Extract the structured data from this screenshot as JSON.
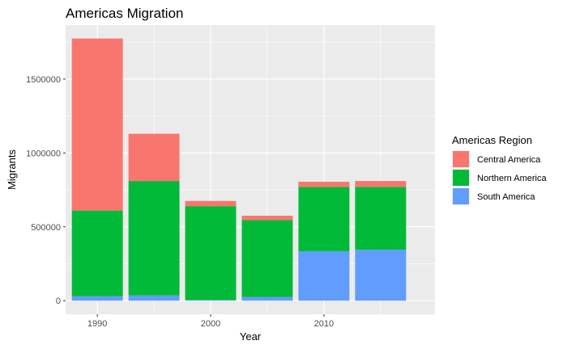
{
  "chart_data": {
    "type": "bar",
    "stacked": true,
    "title": "Americas Migration",
    "xlabel": "Year",
    "ylabel": "Migrants",
    "x": [
      1990,
      1995,
      2000,
      2005,
      2010,
      2015
    ],
    "xlim": [
      1987.2,
      2019.8
    ],
    "x_ticks": [
      1990,
      2000,
      2010
    ],
    "x_tick_labels": [
      "1990",
      "2000",
      "2010"
    ],
    "ylim": [
      -92000,
      1866000
    ],
    "y_ticks": [
      0,
      500000,
      1000000,
      1500000
    ],
    "y_tick_labels": [
      "0",
      "500000",
      "1000000",
      "1500000"
    ],
    "grid": true,
    "legend_title": "Americas Region",
    "legend_position": "right",
    "series": [
      {
        "name": "South America",
        "color": "#619CFF",
        "values": [
          30000,
          35000,
          5000,
          25000,
          335000,
          345000
        ]
      },
      {
        "name": "Northern America",
        "color": "#00BA38",
        "values": [
          580000,
          775000,
          635000,
          520000,
          435000,
          425000
        ]
      },
      {
        "name": "Central America",
        "color": "#F8766D",
        "values": [
          1165000,
          320000,
          35000,
          30000,
          35000,
          40000
        ]
      }
    ],
    "legend_order": [
      "Central America",
      "Northern America",
      "South America"
    ]
  }
}
